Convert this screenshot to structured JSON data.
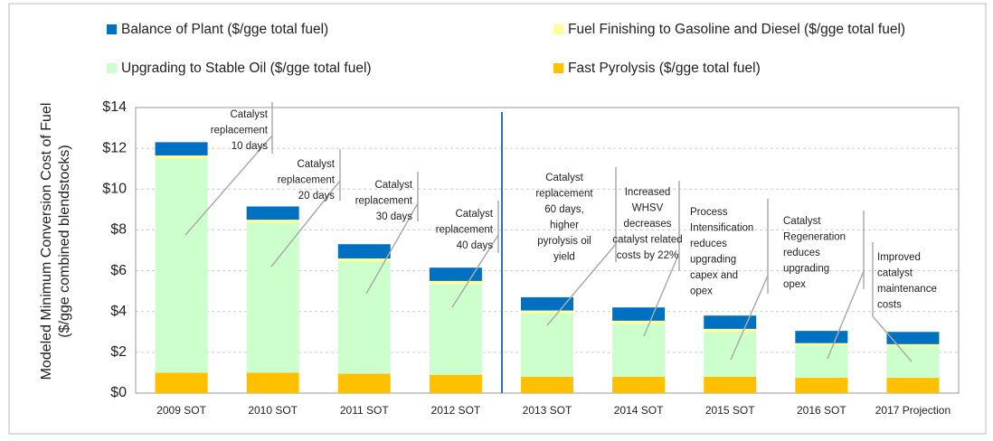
{
  "chart_data": {
    "type": "stacked_bar",
    "ylabel": [
      "Modeled Minimum Conversion Cost of Fuel",
      "($/gge combined blendstocks)"
    ],
    "categories": [
      "2009 SOT",
      "2010 SOT",
      "2011 SOT",
      "2012 SOT",
      "2013 SOT",
      "2014 SOT",
      "2015 SOT",
      "2016 SOT",
      "2017 Projection"
    ],
    "series": [
      {
        "name": "Fast Pyrolysis ($/gge total fuel)",
        "color": "#ffc000",
        "values": [
          1.0,
          1.0,
          0.95,
          0.9,
          0.8,
          0.8,
          0.8,
          0.75,
          0.75
        ]
      },
      {
        "name": "Upgrading to Stable Oil ($/gge total fuel)",
        "color": "#ccffcc",
        "values": [
          10.5,
          7.35,
          5.5,
          4.45,
          3.1,
          2.6,
          2.2,
          1.6,
          1.55
        ]
      },
      {
        "name": "Fuel Finishing to Gasoline and Diesel ($/gge total fuel)",
        "color": "#ffff99",
        "values": [
          0.15,
          0.15,
          0.15,
          0.15,
          0.15,
          0.15,
          0.15,
          0.1,
          0.1
        ]
      },
      {
        "name": "Balance of Plant ($/gge total fuel)",
        "color": "#0070c0",
        "values": [
          0.65,
          0.65,
          0.7,
          0.65,
          0.65,
          0.65,
          0.65,
          0.6,
          0.6
        ]
      }
    ],
    "ylim": [
      0,
      14
    ],
    "yticks": [
      {
        "value": 0,
        "label": "$0"
      },
      {
        "value": 2,
        "label": "$2"
      },
      {
        "value": 4,
        "label": "$4"
      },
      {
        "value": 6,
        "label": "$6"
      },
      {
        "value": 8,
        "label": "$8"
      },
      {
        "value": 10,
        "label": "$10"
      },
      {
        "value": 12,
        "label": "$12"
      },
      {
        "value": 14,
        "label": "$14"
      }
    ],
    "grid": true,
    "annotations": [
      [
        "Catalyst",
        "replacement",
        "10 days"
      ],
      [
        "Catalyst",
        "replacement",
        "20 days"
      ],
      [
        "Catalyst",
        "replacement",
        "30 days"
      ],
      [
        "Catalyst",
        "replacement",
        "40 days"
      ],
      [
        "Catalyst",
        "replacement",
        "60 days,",
        "higher",
        "pyrolysis  oil",
        "yield"
      ],
      [
        "Increased",
        "WHSV",
        "decreases",
        "catalyst related",
        "costs by 22%"
      ],
      [
        "Process",
        "Intensification",
        "reduces",
        "upgrading",
        "capex and",
        "opex"
      ],
      [
        "Catalyst",
        "Regeneration",
        "reduces",
        "upgrading",
        "opex"
      ],
      [
        "Improved",
        "catalyst",
        "maintenance",
        "costs"
      ]
    ]
  }
}
